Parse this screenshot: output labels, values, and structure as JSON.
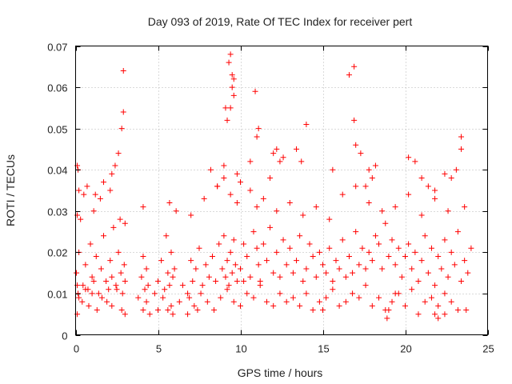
{
  "chart_data": {
    "type": "scatter",
    "title": "Day 093 of 2019, Rate Of TEC Index for receiver pert",
    "xlabel": "GPS time / hours",
    "ylabel": "ROTI / TECUs",
    "xlim": [
      0,
      25
    ],
    "ylim": [
      0,
      0.07
    ],
    "xticks": [
      0,
      5,
      10,
      15,
      20,
      25
    ],
    "xtick_labels": [
      "0",
      "5",
      "10",
      "15",
      "20",
      "25"
    ],
    "yticks": [
      0,
      0.01,
      0.02,
      0.03,
      0.04,
      0.05,
      0.06,
      0.07
    ],
    "ytick_labels": [
      "0",
      "0.01",
      "0.02",
      "0.03",
      "0.04",
      "0.05",
      "0.06",
      "0.07"
    ],
    "grid": true,
    "marker": "plus",
    "color": "#ff0000",
    "series": [
      {
        "name": "ROTI",
        "x": [
          0.05,
          0.1,
          0.15,
          0.2,
          0.3,
          0.45,
          0.6,
          0.75,
          0.9,
          1.0,
          1.1,
          1.25,
          1.4,
          1.55,
          1.7,
          1.85,
          2.0,
          2.1,
          2.2,
          2.3,
          2.45,
          2.6,
          2.75,
          2.85,
          2.95,
          3.0,
          4.0,
          4.1,
          4.2,
          4.3,
          4.4,
          4.8,
          5.0,
          5.2,
          5.4,
          5.5,
          5.6,
          5.7,
          5.8,
          5.9,
          6.0,
          6.5,
          6.8,
          7.0,
          7.1,
          7.3,
          7.5,
          7.7,
          7.9,
          8.1,
          8.3,
          8.5,
          8.7,
          8.9,
          9.0,
          9.1,
          9.2,
          9.3,
          9.4,
          9.5,
          9.6,
          9.7,
          9.8,
          10.0,
          10.2,
          10.4,
          10.6,
          10.8,
          11.0,
          11.1,
          11.2,
          11.4,
          11.6,
          11.8,
          12.0,
          12.2,
          12.4,
          12.6,
          12.8,
          13.0,
          13.2,
          13.4,
          13.6,
          13.8,
          14.0,
          14.2,
          14.4,
          14.6,
          14.8,
          15.0,
          15.2,
          15.4,
          15.6,
          15.8,
          16.0,
          16.2,
          16.4,
          16.6,
          16.8,
          17.0,
          17.2,
          17.4,
          17.6,
          17.8,
          18.0,
          18.2,
          18.4,
          18.6,
          18.8,
          19.0,
          19.2,
          19.4,
          19.6,
          19.8,
          20.0,
          20.2,
          20.4,
          20.6,
          20.8,
          21.0,
          21.2,
          21.4,
          21.6,
          21.8,
          22.0,
          22.2,
          22.4,
          22.6,
          22.8,
          23.0,
          23.2,
          23.4,
          23.6,
          23.8,
          24.0,
          0.2,
          0.4,
          0.6,
          0.8,
          1.0,
          1.3,
          1.6,
          1.9,
          2.2,
          2.5,
          2.8,
          3.0,
          4.3,
          5.3,
          5.6,
          5.9,
          6.3,
          6.9,
          7.2,
          7.6,
          8.0,
          8.4,
          8.8,
          9.2,
          9.6,
          10.0,
          10.4,
          10.8,
          11.2,
          11.6,
          12.0,
          12.4,
          12.8,
          13.2,
          13.6,
          14.0,
          14.4,
          14.8,
          15.2,
          15.6,
          16.0,
          16.4,
          16.8,
          17.2,
          17.6,
          18.0,
          18.4,
          18.8,
          19.2,
          19.6,
          20.0,
          20.4,
          20.8,
          21.2,
          21.6,
          22.0,
          22.4,
          22.8,
          23.2,
          23.6,
          0.1,
          0.5,
          1.1,
          1.5,
          2.1,
          2.7,
          3.0,
          4.1,
          5.7,
          6.1,
          7.0,
          7.8,
          8.6,
          9.0,
          9.4,
          9.8,
          10.6,
          11.0,
          11.4,
          12.2,
          13.0,
          13.8,
          14.6,
          15.4,
          16.2,
          17.0,
          17.8,
          18.6,
          19.4,
          20.2,
          21.0,
          21.8,
          22.6,
          23.4,
          0.2,
          0.7,
          1.2,
          1.7,
          2.2,
          2.4,
          2.6,
          2.8,
          2.9,
          2.9,
          9.3,
          9.4,
          9.5,
          9.5,
          9.6,
          9.6,
          9.4,
          9.2,
          9.1,
          10.9,
          11.0,
          11.1,
          12.2,
          12.4,
          12.6,
          13.4,
          13.7,
          14.0,
          15.6,
          16.6,
          16.9,
          16.9,
          17.0,
          17.3,
          17.6,
          17.8,
          18.0,
          18.2,
          20.2,
          20.6,
          21.0,
          21.4,
          21.8,
          22.4,
          22.8,
          23.1,
          23.4,
          0.1,
          0.15,
          0.1,
          3.8,
          4.1,
          4.5,
          5.0,
          5.8,
          6.8,
          7.4,
          15.0,
          21.8,
          22.0,
          22.4,
          23.7,
          18.9,
          19.0,
          19.4,
          10.2,
          10.6,
          11.8,
          12.0,
          8.2,
          8.6,
          9.0,
          9.8,
          10.0
        ],
        "y": [
          0.015,
          0.012,
          0.01,
          0.02,
          0.028,
          0.012,
          0.017,
          0.011,
          0.022,
          0.014,
          0.013,
          0.019,
          0.01,
          0.016,
          0.024,
          0.013,
          0.011,
          0.018,
          0.014,
          0.026,
          0.012,
          0.02,
          0.015,
          0.01,
          0.017,
          0.013,
          0.014,
          0.019,
          0.011,
          0.016,
          0.012,
          0.01,
          0.013,
          0.018,
          0.011,
          0.024,
          0.015,
          0.012,
          0.02,
          0.014,
          0.016,
          0.012,
          0.01,
          0.018,
          0.013,
          0.016,
          0.021,
          0.012,
          0.017,
          0.014,
          0.019,
          0.013,
          0.022,
          0.016,
          0.024,
          0.014,
          0.018,
          0.012,
          0.02,
          0.015,
          0.023,
          0.017,
          0.013,
          0.016,
          0.022,
          0.019,
          0.014,
          0.025,
          0.021,
          0.017,
          0.013,
          0.022,
          0.018,
          0.026,
          0.015,
          0.02,
          0.014,
          0.023,
          0.017,
          0.021,
          0.015,
          0.018,
          0.024,
          0.013,
          0.016,
          0.022,
          0.019,
          0.014,
          0.02,
          0.017,
          0.015,
          0.021,
          0.013,
          0.018,
          0.016,
          0.023,
          0.014,
          0.019,
          0.015,
          0.025,
          0.017,
          0.021,
          0.016,
          0.02,
          0.018,
          0.024,
          0.022,
          0.016,
          0.027,
          0.019,
          0.023,
          0.017,
          0.021,
          0.014,
          0.019,
          0.022,
          0.016,
          0.02,
          0.013,
          0.018,
          0.024,
          0.015,
          0.021,
          0.012,
          0.019,
          0.016,
          0.023,
          0.014,
          0.02,
          0.017,
          0.025,
          0.013,
          0.018,
          0.015,
          0.021,
          0.009,
          0.008,
          0.011,
          0.007,
          0.01,
          0.006,
          0.009,
          0.008,
          0.007,
          0.011,
          0.006,
          0.005,
          0.008,
          0.009,
          0.006,
          0.005,
          0.008,
          0.009,
          0.007,
          0.01,
          0.008,
          0.006,
          0.009,
          0.011,
          0.008,
          0.007,
          0.01,
          0.009,
          0.012,
          0.008,
          0.007,
          0.01,
          0.008,
          0.009,
          0.007,
          0.01,
          0.006,
          0.008,
          0.009,
          0.011,
          0.007,
          0.008,
          0.01,
          0.009,
          0.012,
          0.007,
          0.009,
          0.006,
          0.008,
          0.01,
          0.007,
          0.011,
          0.005,
          0.008,
          0.009,
          0.007,
          0.01,
          0.008,
          0.006,
          0.031,
          0.029,
          0.034,
          0.03,
          0.033,
          0.035,
          0.028,
          0.027,
          0.031,
          0.032,
          0.03,
          0.029,
          0.033,
          0.036,
          0.038,
          0.034,
          0.032,
          0.035,
          0.031,
          0.033,
          0.03,
          0.032,
          0.029,
          0.031,
          0.028,
          0.034,
          0.036,
          0.032,
          0.03,
          0.031,
          0.034,
          0.029,
          0.033,
          0.03,
          0.045,
          0.035,
          0.036,
          0.034,
          0.037,
          0.039,
          0.041,
          0.044,
          0.05,
          0.054,
          0.064,
          0.066,
          0.068,
          0.063,
          0.06,
          0.058,
          0.062,
          0.055,
          0.052,
          0.055,
          0.059,
          0.048,
          0.05,
          0.045,
          0.042,
          0.043,
          0.045,
          0.042,
          0.051,
          0.04,
          0.063,
          0.065,
          0.052,
          0.046,
          0.044,
          0.036,
          0.04,
          0.038,
          0.041,
          0.043,
          0.042,
          0.038,
          0.036,
          0.035,
          0.039,
          0.038,
          0.04,
          0.048,
          0.041,
          0.04,
          0.005,
          0.009,
          0.006,
          0.005,
          0.006,
          0.007,
          0.005,
          0.006,
          0.006,
          0.005,
          0.004,
          0.005,
          0.006,
          0.004,
          0.006,
          0.01,
          0.013,
          0.042,
          0.038,
          0.044,
          0.04,
          0.036,
          0.041,
          0.039,
          0.037
        ]
      }
    ]
  }
}
